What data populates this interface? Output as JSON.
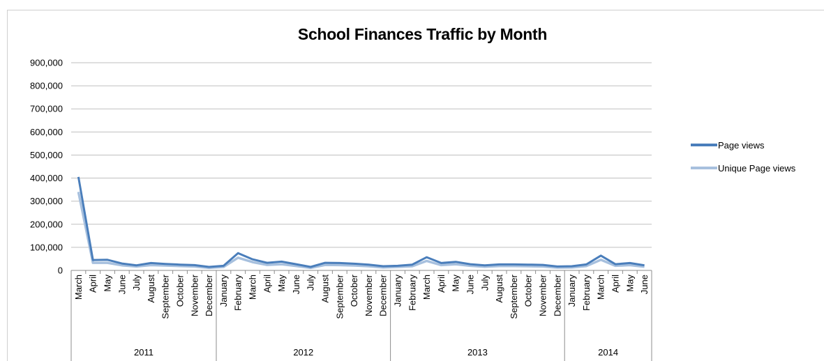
{
  "chart_data": {
    "type": "line",
    "title": "School Finances Traffic by Month",
    "ylim": [
      0,
      900000
    ],
    "yticks": [
      0,
      100000,
      200000,
      300000,
      400000,
      500000,
      600000,
      700000,
      800000,
      900000
    ],
    "ytick_labels": [
      "0",
      "100,000",
      "200,000",
      "300,000",
      "400,000",
      "500,000",
      "600,000",
      "700,000",
      "800,000",
      "900,000"
    ],
    "grid": true,
    "legend_position": "right",
    "categories": [
      "March",
      "April",
      "May",
      "June",
      "July",
      "August",
      "September",
      "October",
      "November",
      "December",
      "January",
      "February",
      "March",
      "April",
      "May",
      "June",
      "July",
      "August",
      "September",
      "October",
      "November",
      "December",
      "January",
      "February",
      "March",
      "April",
      "May",
      "June",
      "July",
      "August",
      "September",
      "October",
      "November",
      "December",
      "January",
      "February",
      "March",
      "April",
      "May",
      "June"
    ],
    "year_groups": [
      {
        "label": "2011",
        "count": 10
      },
      {
        "label": "2012",
        "count": 12
      },
      {
        "label": "2013",
        "count": 12
      },
      {
        "label": "2014",
        "count": 6
      }
    ],
    "series": [
      {
        "name": "Page views",
        "color": "#4a7ebb",
        "values": [
          405000,
          45000,
          46000,
          30000,
          22000,
          32000,
          28000,
          25000,
          23000,
          15000,
          20000,
          75000,
          48000,
          33000,
          38000,
          27000,
          15000,
          33000,
          32000,
          29000,
          25000,
          18000,
          20000,
          25000,
          57000,
          32000,
          37000,
          27000,
          22000,
          26000,
          26000,
          25000,
          24000,
          17000,
          18000,
          26000,
          64000,
          27000,
          32000,
          22000
        ]
      },
      {
        "name": "Unique Page views",
        "color": "#a7c0de",
        "values": [
          340000,
          33000,
          33000,
          22000,
          17000,
          23000,
          21000,
          19000,
          17000,
          11000,
          15000,
          55000,
          36000,
          24000,
          27000,
          19000,
          11000,
          24000,
          23000,
          21000,
          18000,
          13000,
          15000,
          18000,
          41000,
          23000,
          27000,
          20000,
          16000,
          19000,
          19000,
          18000,
          17000,
          12000,
          13000,
          19000,
          46000,
          20000,
          23000,
          16000
        ]
      }
    ]
  }
}
